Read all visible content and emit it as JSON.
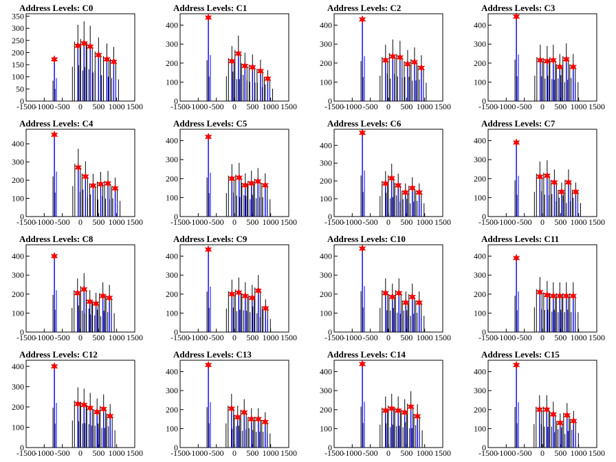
{
  "chart_data": [
    {
      "type": "histogram",
      "title": "Address Levels: C0",
      "xlim": [
        -1500,
        1500
      ],
      "ylim": [
        0,
        360
      ],
      "xticks": [
        -1500,
        -1000,
        -500,
        0,
        500,
        1000,
        1500
      ],
      "yticks": [
        0,
        50,
        100,
        150,
        200,
        250,
        300,
        350
      ],
      "peaks": [
        {
          "x": -720,
          "y": 172
        },
        {
          "x": -70,
          "y": 228
        },
        {
          "x": 100,
          "y": 238
        },
        {
          "x": 270,
          "y": 225
        },
        {
          "x": 500,
          "y": 190
        },
        {
          "x": 730,
          "y": 172
        },
        {
          "x": 920,
          "y": 162
        }
      ]
    },
    {
      "type": "histogram",
      "title": "Address Levels: C1",
      "xlim": [
        -1500,
        1500
      ],
      "ylim": [
        0,
        460
      ],
      "xticks": [
        -1500,
        -1000,
        -500,
        0,
        500,
        1000,
        1500
      ],
      "yticks": [
        0,
        100,
        200,
        300,
        400
      ],
      "peaks": [
        {
          "x": -720,
          "y": 440
        },
        {
          "x": -70,
          "y": 210
        },
        {
          "x": 110,
          "y": 250
        },
        {
          "x": 290,
          "y": 185
        },
        {
          "x": 500,
          "y": 178
        },
        {
          "x": 720,
          "y": 158
        },
        {
          "x": 920,
          "y": 118
        }
      ]
    },
    {
      "type": "histogram",
      "title": "Address Levels: C2",
      "xlim": [
        -1500,
        1500
      ],
      "ylim": [
        0,
        460
      ],
      "xticks": [
        -1500,
        -1000,
        -500,
        0,
        500,
        1000,
        1500
      ],
      "yticks": [
        0,
        100,
        200,
        300,
        400
      ],
      "peaks": [
        {
          "x": -720,
          "y": 430
        },
        {
          "x": -80,
          "y": 215
        },
        {
          "x": 120,
          "y": 235
        },
        {
          "x": 320,
          "y": 230
        },
        {
          "x": 530,
          "y": 195
        },
        {
          "x": 720,
          "y": 205
        },
        {
          "x": 910,
          "y": 175
        }
      ]
    },
    {
      "type": "histogram",
      "title": "Address Levels: C3",
      "xlim": [
        -1500,
        1500
      ],
      "ylim": [
        0,
        460
      ],
      "xticks": [
        -1500,
        -1000,
        -500,
        0,
        500,
        1000,
        1500
      ],
      "yticks": [
        0,
        100,
        200,
        300,
        400
      ],
      "peaks": [
        {
          "x": -720,
          "y": 445
        },
        {
          "x": -60,
          "y": 215
        },
        {
          "x": 130,
          "y": 210
        },
        {
          "x": 300,
          "y": 215
        },
        {
          "x": 480,
          "y": 180
        },
        {
          "x": 660,
          "y": 220
        },
        {
          "x": 850,
          "y": 180
        }
      ]
    },
    {
      "type": "histogram",
      "title": "Address Levels: C4",
      "xlim": [
        -1500,
        1500
      ],
      "ylim": [
        0,
        480
      ],
      "xticks": [
        -1500,
        -1000,
        -500,
        0,
        500,
        1000,
        1500
      ],
      "yticks": [
        0,
        100,
        200,
        300,
        400
      ],
      "peaks": [
        {
          "x": -720,
          "y": 450
        },
        {
          "x": -60,
          "y": 270
        },
        {
          "x": 140,
          "y": 220
        },
        {
          "x": 350,
          "y": 170
        },
        {
          "x": 560,
          "y": 178
        },
        {
          "x": 760,
          "y": 182
        },
        {
          "x": 960,
          "y": 155
        }
      ]
    },
    {
      "type": "histogram",
      "title": "Address Levels: C5",
      "xlim": [
        -1500,
        1500
      ],
      "ylim": [
        0,
        460
      ],
      "xticks": [
        -1500,
        -1000,
        -500,
        0,
        500,
        1000,
        1500
      ],
      "yticks": [
        0,
        100,
        200,
        300,
        400
      ],
      "peaks": [
        {
          "x": -720,
          "y": 420
        },
        {
          "x": -70,
          "y": 200
        },
        {
          "x": 130,
          "y": 205
        },
        {
          "x": 300,
          "y": 165
        },
        {
          "x": 470,
          "y": 175
        },
        {
          "x": 650,
          "y": 185
        },
        {
          "x": 850,
          "y": 165
        }
      ]
    },
    {
      "type": "histogram",
      "title": "Address Levels: C6",
      "xlim": [
        -1500,
        1500
      ],
      "ylim": [
        0,
        490
      ],
      "xticks": [
        -1500,
        -1000,
        -500,
        0,
        500,
        1000,
        1500
      ],
      "yticks": [
        0,
        100,
        200,
        300,
        400
      ],
      "peaks": [
        {
          "x": -720,
          "y": 470
        },
        {
          "x": -80,
          "y": 185
        },
        {
          "x": 90,
          "y": 215
        },
        {
          "x": 270,
          "y": 175
        },
        {
          "x": 470,
          "y": 135
        },
        {
          "x": 660,
          "y": 160
        },
        {
          "x": 850,
          "y": 135
        }
      ]
    },
    {
      "type": "histogram",
      "title": "Address Levels: C7",
      "xlim": [
        -1500,
        1500
      ],
      "ylim": [
        0,
        460
      ],
      "xticks": [
        -1500,
        -1000,
        -500,
        0,
        500,
        1000,
        1500
      ],
      "yticks": [
        0,
        100,
        200,
        300,
        400
      ],
      "peaks": [
        {
          "x": -720,
          "y": 390
        },
        {
          "x": -70,
          "y": 210
        },
        {
          "x": 130,
          "y": 215
        },
        {
          "x": 330,
          "y": 180
        },
        {
          "x": 530,
          "y": 130
        },
        {
          "x": 720,
          "y": 180
        },
        {
          "x": 920,
          "y": 130
        }
      ]
    },
    {
      "type": "histogram",
      "title": "Address Levels: C8",
      "xlim": [
        -1500,
        1500
      ],
      "ylim": [
        0,
        460
      ],
      "xticks": [
        -1500,
        -1000,
        -500,
        0,
        500,
        1000,
        1500
      ],
      "yticks": [
        0,
        100,
        200,
        300,
        400
      ],
      "peaks": [
        {
          "x": -720,
          "y": 400
        },
        {
          "x": -80,
          "y": 205
        },
        {
          "x": 100,
          "y": 225
        },
        {
          "x": 260,
          "y": 160
        },
        {
          "x": 430,
          "y": 150
        },
        {
          "x": 620,
          "y": 190
        },
        {
          "x": 800,
          "y": 180
        }
      ]
    },
    {
      "type": "histogram",
      "title": "Address Levels: C9",
      "xlim": [
        -1500,
        1500
      ],
      "ylim": [
        0,
        460
      ],
      "xticks": [
        -1500,
        -1000,
        -500,
        0,
        500,
        1000,
        1500
      ],
      "yticks": [
        0,
        100,
        200,
        300,
        400
      ],
      "peaks": [
        {
          "x": -720,
          "y": 435
        },
        {
          "x": -70,
          "y": 200
        },
        {
          "x": 120,
          "y": 208
        },
        {
          "x": 300,
          "y": 190
        },
        {
          "x": 490,
          "y": 180
        },
        {
          "x": 660,
          "y": 218
        },
        {
          "x": 860,
          "y": 125
        }
      ]
    },
    {
      "type": "histogram",
      "title": "Address Levels: C10",
      "xlim": [
        -1500,
        1500
      ],
      "ylim": [
        0,
        460
      ],
      "xticks": [
        -1500,
        -1000,
        -500,
        0,
        500,
        1000,
        1500
      ],
      "yticks": [
        0,
        100,
        200,
        300,
        400
      ],
      "peaks": [
        {
          "x": -720,
          "y": 440
        },
        {
          "x": -80,
          "y": 205
        },
        {
          "x": 110,
          "y": 185
        },
        {
          "x": 290,
          "y": 205
        },
        {
          "x": 480,
          "y": 155
        },
        {
          "x": 660,
          "y": 185
        },
        {
          "x": 850,
          "y": 155
        }
      ]
    },
    {
      "type": "histogram",
      "title": "Address Levels: C11",
      "xlim": [
        -1500,
        1500
      ],
      "ylim": [
        0,
        460
      ],
      "xticks": [
        -1500,
        -1000,
        -500,
        0,
        500,
        1000,
        1500
      ],
      "yticks": [
        0,
        100,
        200,
        300,
        400
      ],
      "peaks": [
        {
          "x": -720,
          "y": 390
        },
        {
          "x": -70,
          "y": 210
        },
        {
          "x": 130,
          "y": 195
        },
        {
          "x": 300,
          "y": 190
        },
        {
          "x": 480,
          "y": 190
        },
        {
          "x": 660,
          "y": 190
        },
        {
          "x": 850,
          "y": 190
        }
      ]
    },
    {
      "type": "histogram",
      "title": "Address Levels: C12",
      "xlim": [
        -1500,
        1500
      ],
      "ylim": [
        0,
        430
      ],
      "xticks": [
        -1500,
        -1000,
        -500,
        0,
        500,
        1000,
        1500
      ],
      "yticks": [
        0,
        100,
        200,
        300,
        400
      ],
      "peaks": [
        {
          "x": -720,
          "y": 400
        },
        {
          "x": -70,
          "y": 215
        },
        {
          "x": 100,
          "y": 210
        },
        {
          "x": 270,
          "y": 195
        },
        {
          "x": 460,
          "y": 175
        },
        {
          "x": 640,
          "y": 190
        },
        {
          "x": 820,
          "y": 155
        }
      ]
    },
    {
      "type": "histogram",
      "title": "Address Levels: C13",
      "xlim": [
        -1500,
        1500
      ],
      "ylim": [
        0,
        460
      ],
      "xticks": [
        -1500,
        -1000,
        -500,
        0,
        500,
        1000,
        1500
      ],
      "yticks": [
        0,
        100,
        200,
        300,
        400
      ],
      "peaks": [
        {
          "x": -720,
          "y": 435
        },
        {
          "x": -80,
          "y": 205
        },
        {
          "x": 90,
          "y": 160
        },
        {
          "x": 270,
          "y": 185
        },
        {
          "x": 470,
          "y": 150
        },
        {
          "x": 660,
          "y": 150
        },
        {
          "x": 850,
          "y": 135
        }
      ]
    },
    {
      "type": "histogram",
      "title": "Address Levels: C14",
      "xlim": [
        -1500,
        1500
      ],
      "ylim": [
        0,
        460
      ],
      "xticks": [
        -1500,
        -1000,
        -500,
        0,
        500,
        1000,
        1500
      ],
      "yticks": [
        0,
        100,
        200,
        300,
        400
      ],
      "peaks": [
        {
          "x": -720,
          "y": 440
        },
        {
          "x": -80,
          "y": 195
        },
        {
          "x": 90,
          "y": 205
        },
        {
          "x": 270,
          "y": 195
        },
        {
          "x": 450,
          "y": 185
        },
        {
          "x": 620,
          "y": 215
        },
        {
          "x": 800,
          "y": 165
        }
      ]
    },
    {
      "type": "histogram",
      "title": "Address Levels: C15",
      "xlim": [
        -1500,
        1500
      ],
      "ylim": [
        0,
        460
      ],
      "xticks": [
        -1500,
        -1000,
        -500,
        0,
        500,
        1000,
        1500
      ],
      "yticks": [
        0,
        100,
        200,
        300,
        400
      ],
      "peaks": [
        {
          "x": -720,
          "y": 435
        },
        {
          "x": -80,
          "y": 200
        },
        {
          "x": 120,
          "y": 200
        },
        {
          "x": 300,
          "y": 175
        },
        {
          "x": 490,
          "y": 130
        },
        {
          "x": 680,
          "y": 170
        },
        {
          "x": 860,
          "y": 140
        }
      ]
    }
  ]
}
